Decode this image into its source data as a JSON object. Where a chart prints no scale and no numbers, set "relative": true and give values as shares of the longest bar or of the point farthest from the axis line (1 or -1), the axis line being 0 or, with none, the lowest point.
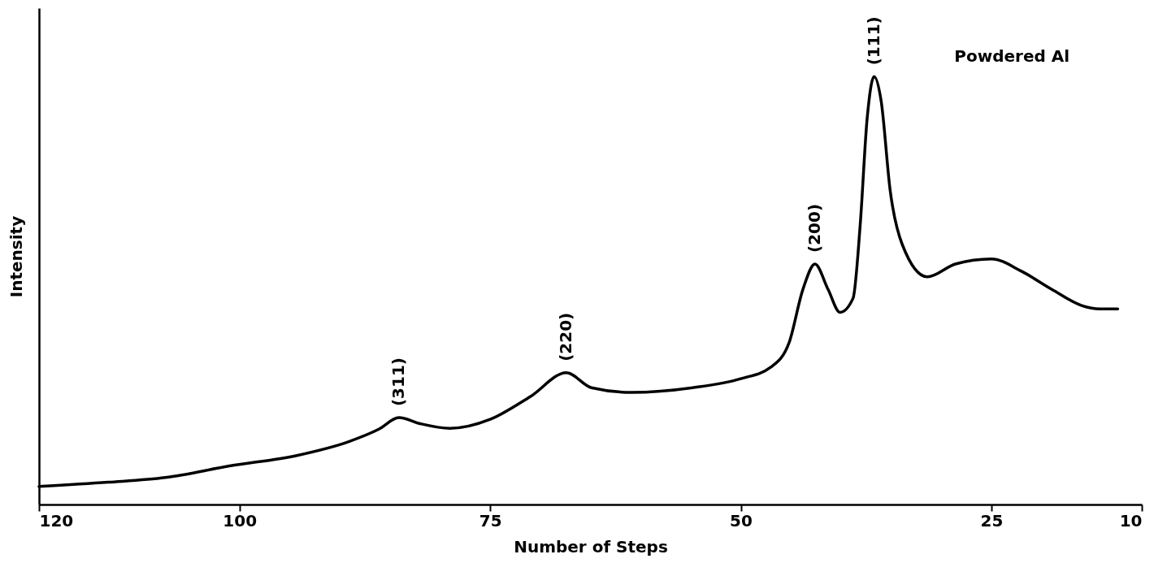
{
  "chart_data": {
    "type": "line",
    "xlabel": "Number of Steps",
    "ylabel": "Intensity",
    "relative": true,
    "xlim": [
      120,
      10
    ],
    "xticks": [
      120,
      100,
      75,
      50,
      25,
      10
    ],
    "x": [
      120,
      113.1,
      107.4,
      101.0,
      94.2,
      89.1,
      86.1,
      84.1,
      82.0,
      79.0,
      75.0,
      71.0,
      67.4,
      64.9,
      60.9,
      54.8,
      50.0,
      47.0,
      45.2,
      43.8,
      42.6,
      41.3,
      40.1,
      38.8,
      38.1,
      37.4,
      36.7,
      36.0,
      35.1,
      33.9,
      31.4,
      28.6,
      25.0,
      22.0,
      19.0,
      16.0,
      14.2,
      12.4
    ],
    "series": [
      {
        "color": "#000000",
        "values": [
          0.042,
          0.052,
          0.063,
          0.09,
          0.115,
          0.147,
          0.176,
          0.203,
          0.189,
          0.178,
          0.199,
          0.252,
          0.308,
          0.273,
          0.262,
          0.273,
          0.294,
          0.321,
          0.377,
          0.503,
          0.562,
          0.503,
          0.449,
          0.482,
          0.65,
          0.901,
          1.0,
          0.943,
          0.734,
          0.608,
          0.532,
          0.562,
          0.574,
          0.545,
          0.503,
          0.465,
          0.457,
          0.457
        ]
      }
    ],
    "annotations": [
      {
        "text": "(311)",
        "x": 84.1,
        "y": 0.203
      },
      {
        "text": "(220)",
        "x": 67.4,
        "y": 0.308
      },
      {
        "text": "(200)",
        "x": 42.6,
        "y": 0.562
      },
      {
        "text": "(111)",
        "x": 36.7,
        "y": 1.0
      },
      "Powdered Al"
    ],
    "grid": false,
    "marker": "none",
    "line_style": "solid"
  }
}
